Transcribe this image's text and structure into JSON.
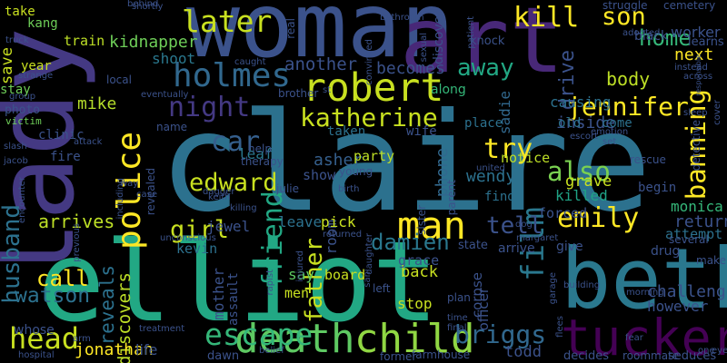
{
  "words": [
    "claire",
    "elliot",
    "lady",
    "woman",
    "art",
    "beth",
    "tucker",
    "man",
    "death",
    "child",
    "robert",
    "holmes",
    "later",
    "kill",
    "son",
    "home",
    "police",
    "night",
    "katherine",
    "jennifer",
    "banning",
    "edward",
    "emily",
    "try",
    "also",
    "car",
    "friend",
    "father",
    "film",
    "tell",
    "damien",
    "escape",
    "briggs",
    "head",
    "call",
    "husband",
    "watson",
    "reveals",
    "discovers",
    "girl",
    "jonathan",
    "arrives",
    "away",
    "next",
    "body",
    "drive",
    "another",
    "becomes",
    "say",
    "mike",
    "kidnapper",
    "train",
    "shoot",
    "leaf",
    "asher",
    "wendy",
    "phone",
    "sadie",
    "inside",
    "notice",
    "grave",
    "killed",
    "forced",
    "monica",
    "return",
    "attempt",
    "challenge",
    "however",
    "todd",
    "stop",
    "back",
    "grace",
    "board",
    "room",
    "pick",
    "leave",
    "jewel",
    "kevin",
    "mother",
    "men",
    "assault",
    "show",
    "party",
    "taken",
    "wife",
    "place",
    "come",
    "old",
    "find",
    "begin",
    "save",
    "stay",
    "year",
    "clinic",
    "fire",
    "photo",
    "victim",
    "take",
    "kang",
    "causing",
    "along",
    "life",
    "dawn",
    "whose",
    "corpse",
    "officer",
    "worker",
    "black",
    "knock",
    "learns",
    "detective",
    "sleep",
    "rescue",
    "drug",
    "make",
    "state",
    "give",
    "arrive",
    "left",
    "plan",
    "sister",
    "parent",
    "young",
    "dog",
    "united",
    "fear",
    "roommate",
    "decides",
    "seduces",
    "former",
    "farmhouse",
    "hospital",
    "arm",
    "attack",
    "slash",
    "group",
    "strange",
    "local",
    "caught",
    "real",
    "brother",
    "eventually",
    "therapy",
    "help",
    "julie",
    "name",
    "revealed",
    "set",
    "emotion",
    "escort",
    "adopted",
    "patient",
    "discover",
    "bathroom",
    "struggle",
    "cemetery",
    "instead",
    "across",
    "responsible",
    "several",
    "cover",
    "truck",
    "behind",
    "shortly",
    "convinced",
    "sexual",
    "including",
    "jacob",
    "encounter",
    "previous",
    "way",
    "case",
    "dagger",
    "rapist",
    "injured",
    "daughter",
    "birth",
    "time",
    "final",
    "flees",
    "garage",
    "building",
    "morning",
    "returned",
    "treatment",
    "belief",
    "unconscious",
    "keith",
    "killing",
    "st",
    "san",
    "margaret",
    "eye",
    "one"
  ]
}
